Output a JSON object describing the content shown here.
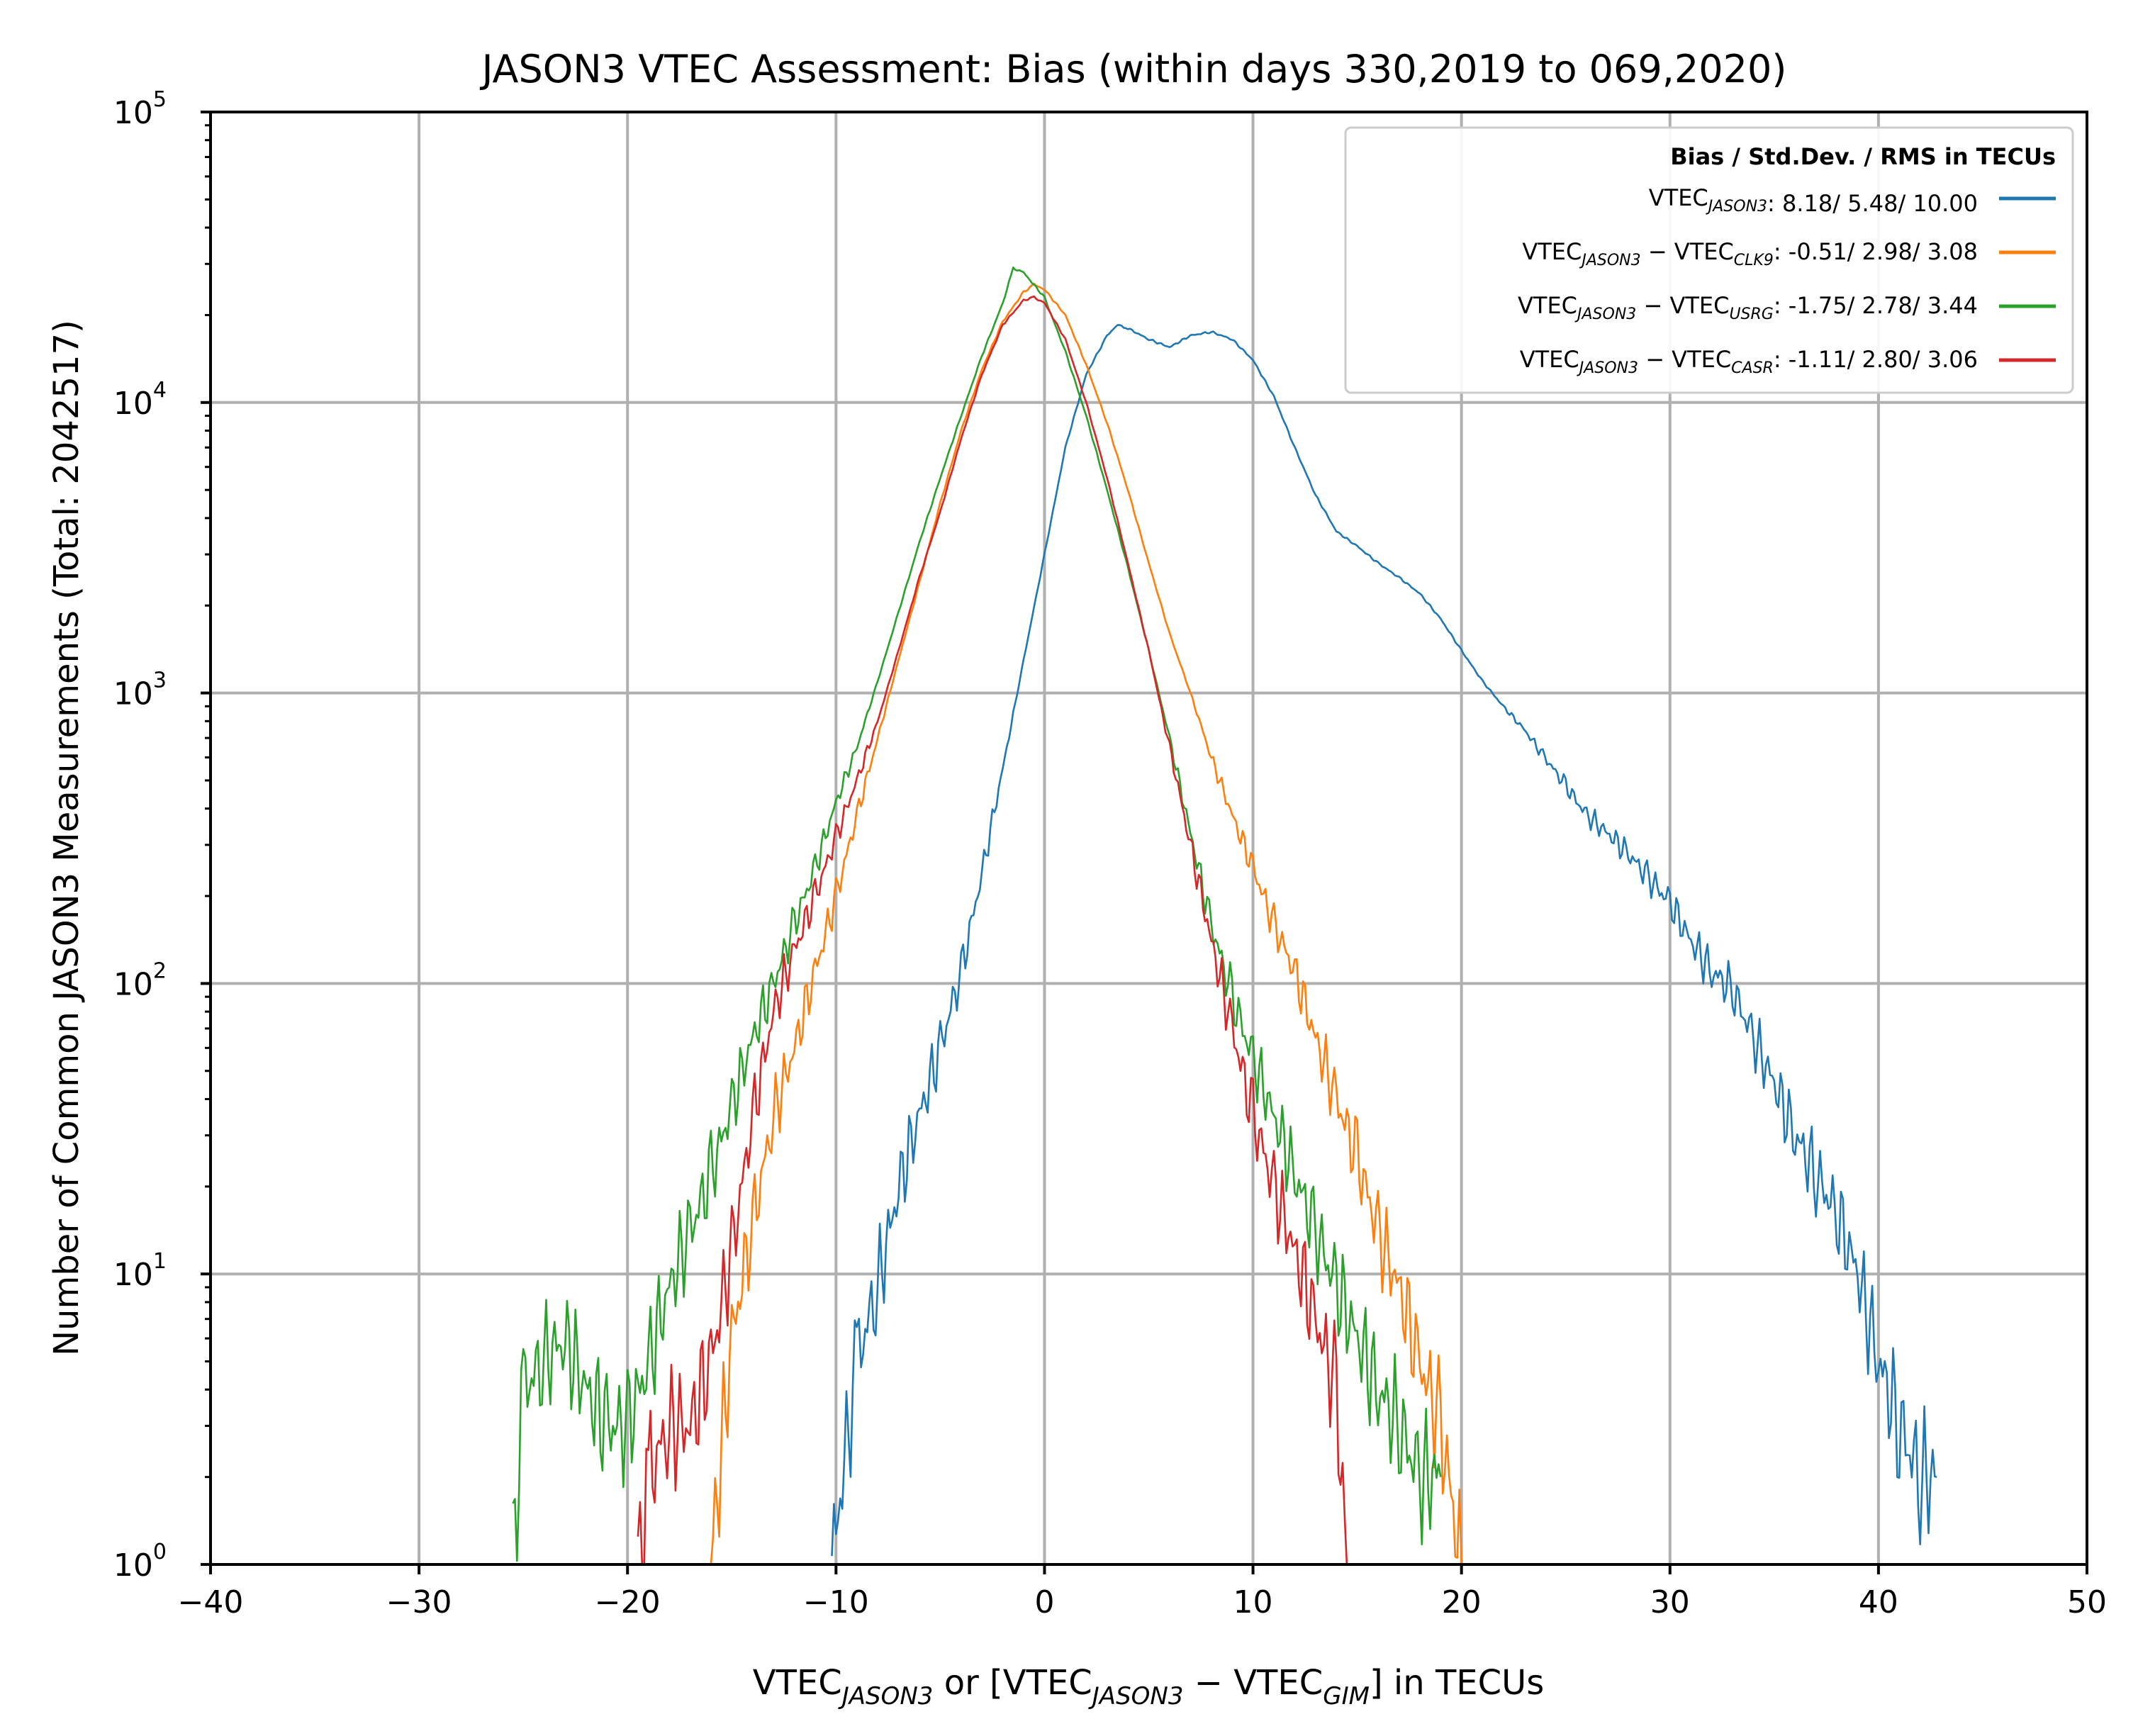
{
  "chart_data": {
    "type": "line",
    "title": "JASON3 VTEC Assessment: Bias (within days 330,2019 to 069,2020)",
    "xlabel": {
      "main": "VTEC",
      "sub1": "JASON3",
      "mid": " or [VTEC",
      "sub2": "JASON3",
      "minus": " − VTEC",
      "sub3": "GIM",
      "tail": "] in TECUs"
    },
    "ylabel": "Number of Common JASON3 Measurements (Total: 2042517)",
    "xlim": [
      -40,
      50
    ],
    "ylim": [
      1,
      100000
    ],
    "yscale": "log",
    "grid": true,
    "x_ticks": [
      "−40",
      "−30",
      "−20",
      "−10",
      "0",
      "10",
      "20",
      "30",
      "40",
      "50"
    ],
    "x_tick_values": [
      -40,
      -30,
      -20,
      -10,
      0,
      10,
      20,
      30,
      40,
      50
    ],
    "y_ticks": [
      {
        "value": 1,
        "base": "10",
        "exp": "0"
      },
      {
        "value": 10,
        "base": "10",
        "exp": "1"
      },
      {
        "value": 100,
        "base": "10",
        "exp": "2"
      },
      {
        "value": 1000,
        "base": "10",
        "exp": "3"
      },
      {
        "value": 10000,
        "base": "10",
        "exp": "4"
      },
      {
        "value": 100000,
        "base": "10",
        "exp": "5"
      }
    ],
    "legend": {
      "position": "upper-right",
      "title": "Bias / Std.Dev. / RMS in TECUs",
      "entries": [
        {
          "label_main": "VTEC",
          "label_sub": "JASON3",
          "label_mid": "",
          "label_sub2": "",
          "label_end": ":",
          "stats": "8.18/  5.48/ 10.00",
          "color": "#1f77b4"
        },
        {
          "label_main": "VTEC",
          "label_sub": "JASON3",
          "label_mid": " − VTEC",
          "label_sub2": "CLK9",
          "label_end": ":",
          "stats": "-0.51/  2.98/  3.08",
          "color": "#ff7f0e"
        },
        {
          "label_main": "VTEC",
          "label_sub": "JASON3",
          "label_mid": " − VTEC",
          "label_sub2": "USRG",
          "label_end": ":",
          "stats": "-1.75/  2.78/  3.44",
          "color": "#2ca02c"
        },
        {
          "label_main": "VTEC",
          "label_sub": "JASON3",
          "label_mid": " − VTEC",
          "label_sub2": "CASR",
          "label_end": ":",
          "stats": "-1.11/  2.80/  3.06",
          "color": "#d62728"
        }
      ]
    },
    "series": [
      {
        "name": "VTEC JASON3",
        "color": "#1f77b4",
        "x": [
          -10.2,
          -9,
          -8,
          -7,
          -6,
          -5,
          -4,
          -3,
          -2,
          -1,
          0,
          1,
          2,
          3,
          3.5,
          4,
          5,
          6,
          7,
          8,
          9,
          10,
          11,
          12,
          13,
          14,
          15,
          16,
          17,
          18,
          19,
          20,
          21,
          22,
          23,
          24,
          25,
          26,
          27,
          28,
          29,
          30,
          31,
          32,
          33,
          34,
          35,
          36,
          37,
          38,
          39,
          40,
          41,
          42,
          42.8
        ],
        "values": [
          1,
          5,
          9,
          20,
          35,
          60,
          110,
          240,
          550,
          1300,
          3000,
          7000,
          12500,
          17000,
          18500,
          18000,
          16500,
          15500,
          17000,
          17500,
          16500,
          14000,
          10500,
          7000,
          4800,
          3600,
          3200,
          2800,
          2500,
          2200,
          1800,
          1400,
          1100,
          900,
          750,
          600,
          480,
          380,
          330,
          280,
          230,
          190,
          140,
          110,
          95,
          65,
          45,
          30,
          22,
          16,
          10,
          5,
          3,
          2,
          2
        ]
      },
      {
        "name": "VTEC JASON3 − VTEC CLK9",
        "color": "#ff7f0e",
        "x": [
          -16,
          -15,
          -14,
          -13,
          -12,
          -11,
          -10,
          -9,
          -8,
          -7,
          -6,
          -5,
          -4,
          -3,
          -2,
          -1,
          -0.5,
          0,
          1,
          2,
          3,
          4,
          5,
          6,
          7,
          8,
          9,
          10,
          11,
          12,
          13,
          14,
          15,
          16,
          17,
          18,
          19,
          20
        ],
        "values": [
          1,
          6,
          15,
          35,
          60,
          110,
          200,
          380,
          700,
          1300,
          2400,
          4500,
          8000,
          13000,
          19000,
          24000,
          25500,
          24500,
          20000,
          13500,
          8500,
          5000,
          2800,
          1600,
          1000,
          600,
          380,
          250,
          160,
          110,
          65,
          40,
          25,
          14,
          9,
          5,
          3,
          1
        ]
      },
      {
        "name": "VTEC JASON3 − VTEC USRG",
        "color": "#2ca02c",
        "x": [
          -25.5,
          -25,
          -24,
          -23,
          -22,
          -21,
          -20,
          -19,
          -18,
          -17,
          -16,
          -15,
          -14,
          -13,
          -12,
          -11,
          -10,
          -9,
          -8,
          -7,
          -6,
          -5,
          -4,
          -3,
          -2,
          -1.5,
          -1,
          0,
          1,
          2,
          3,
          4,
          5,
          6,
          7,
          8,
          9,
          10,
          11,
          12,
          13,
          14,
          15,
          16,
          17,
          18,
          19
        ],
        "values": [
          1,
          4,
          5,
          6,
          4,
          3,
          3,
          5,
          9,
          14,
          22,
          38,
          65,
          100,
          160,
          250,
          420,
          650,
          1100,
          1900,
          3300,
          5500,
          9000,
          14500,
          22000,
          29000,
          28000,
          23000,
          15000,
          9000,
          5000,
          2700,
          1400,
          700,
          330,
          160,
          90,
          55,
          35,
          22,
          14,
          9,
          6,
          4,
          3,
          2,
          2
        ]
      },
      {
        "name": "VTEC JASON3 − VTEC CASR",
        "color": "#d62728",
        "x": [
          -19.5,
          -19,
          -18,
          -17,
          -16,
          -15,
          -14,
          -13,
          -12,
          -11,
          -10,
          -9,
          -8,
          -7,
          -6,
          -5,
          -4,
          -3,
          -2,
          -1,
          -0.5,
          0,
          1,
          2,
          3,
          4,
          5,
          6,
          7,
          8,
          9,
          10,
          11,
          12,
          13,
          14,
          14.5
        ],
        "values": [
          1,
          2,
          3,
          3,
          5,
          12,
          35,
          80,
          130,
          200,
          320,
          500,
          800,
          1400,
          2500,
          4200,
          7500,
          12500,
          18500,
          22500,
          23000,
          22000,
          16500,
          10000,
          5500,
          2800,
          1400,
          650,
          300,
          140,
          70,
          35,
          20,
          12,
          7,
          4,
          1
        ]
      }
    ]
  }
}
